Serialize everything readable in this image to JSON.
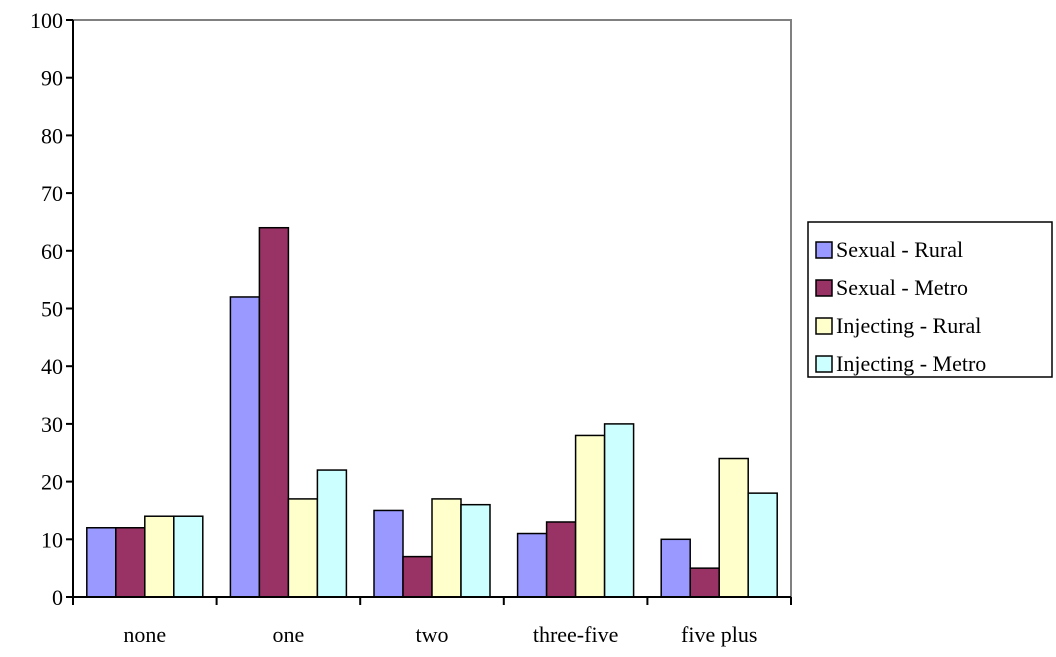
{
  "chart_data": {
    "type": "bar",
    "title": "",
    "xlabel": "",
    "ylabel": "",
    "ylim": [
      0,
      100
    ],
    "yticks": [
      0,
      10,
      20,
      30,
      40,
      50,
      60,
      70,
      80,
      90,
      100
    ],
    "grid": false,
    "legend_position": "right",
    "categories": [
      "none",
      "one",
      "two",
      "three-five",
      "five plus"
    ],
    "series": [
      {
        "name": "Sexual - Rural",
        "color": "#9999ff",
        "values": [
          12,
          52,
          15,
          11,
          10
        ]
      },
      {
        "name": "Sexual - Metro",
        "color": "#993366",
        "values": [
          12,
          64,
          7,
          13,
          5
        ]
      },
      {
        "name": "Injecting - Rural",
        "color": "#ffffcc",
        "values": [
          14,
          17,
          17,
          28,
          24
        ]
      },
      {
        "name": "Injecting - Metro",
        "color": "#ccffff",
        "values": [
          14,
          22,
          16,
          30,
          18
        ]
      }
    ]
  }
}
